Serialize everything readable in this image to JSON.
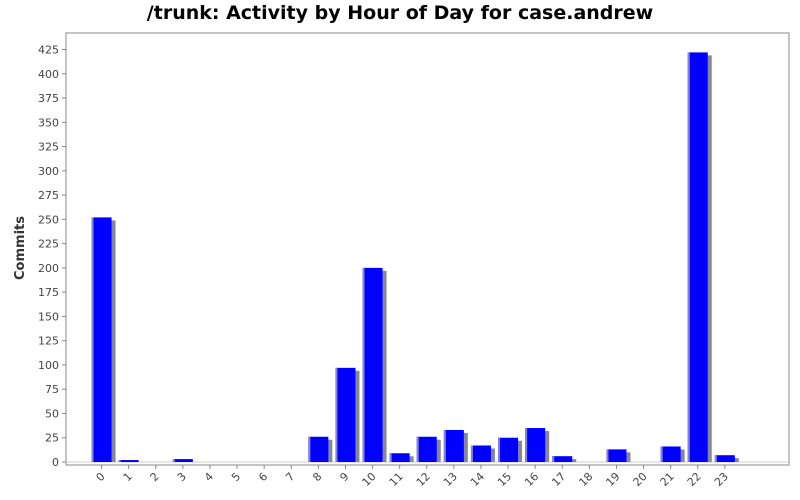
{
  "chart_data": {
    "type": "bar",
    "title": "/trunk: Activity by Hour of Day for case.andrew",
    "xlabel": "",
    "ylabel": "Commits",
    "categories": [
      "0",
      "1",
      "2",
      "3",
      "4",
      "5",
      "6",
      "7",
      "8",
      "9",
      "10",
      "11",
      "12",
      "13",
      "14",
      "15",
      "16",
      "17",
      "18",
      "19",
      "20",
      "21",
      "22",
      "23"
    ],
    "values": [
      252,
      2,
      0,
      3,
      0,
      0,
      0,
      0,
      26,
      97,
      200,
      9,
      26,
      33,
      17,
      25,
      35,
      6,
      0,
      13,
      0,
      16,
      422,
      7
    ],
    "ylim": [
      0,
      440
    ],
    "yticks": [
      0,
      25,
      50,
      75,
      100,
      125,
      150,
      175,
      200,
      225,
      250,
      275,
      300,
      325,
      350,
      375,
      400,
      425
    ],
    "grid": false,
    "legend": "none",
    "bar_color": "#0000ff",
    "shadow_color": "#888888"
  }
}
